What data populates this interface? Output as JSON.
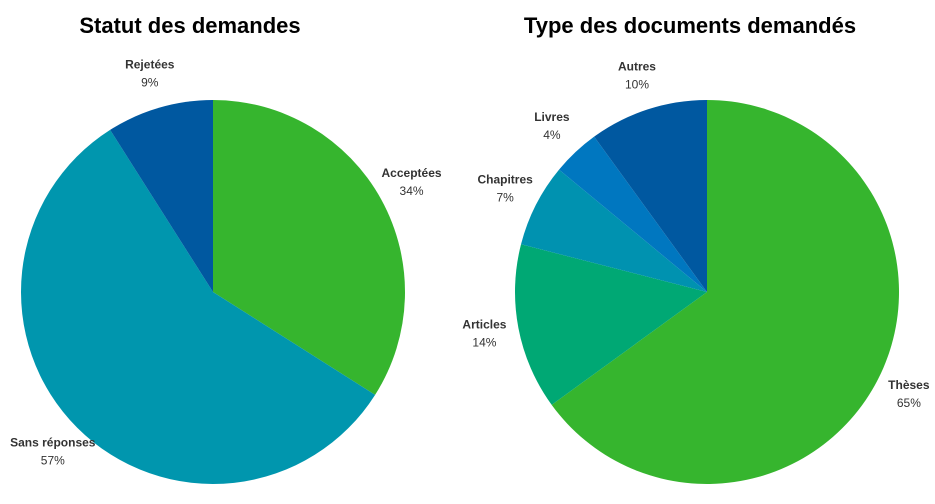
{
  "chart_data": [
    {
      "type": "pie",
      "title": "Statut des demandes",
      "categories": [
        "Acceptées",
        "Sans réponses",
        "Rejetées"
      ],
      "values": [
        34,
        57,
        9
      ],
      "value_labels": [
        "34%",
        "57%",
        "9%"
      ],
      "colors": [
        "#36b52e",
        "#0096ae",
        "#0058a0"
      ]
    },
    {
      "type": "pie",
      "title": "Type des documents demandés",
      "categories": [
        "Thèses",
        "Articles",
        "Chapitres",
        "Livres",
        "Autres"
      ],
      "values": [
        65,
        14,
        7,
        4,
        10
      ],
      "value_labels": [
        "65%",
        "14%",
        "7%",
        "4%",
        "10%"
      ],
      "colors": [
        "#36b52e",
        "#00a874",
        "#0092b0",
        "#0077c0",
        "#0058a0"
      ]
    }
  ]
}
